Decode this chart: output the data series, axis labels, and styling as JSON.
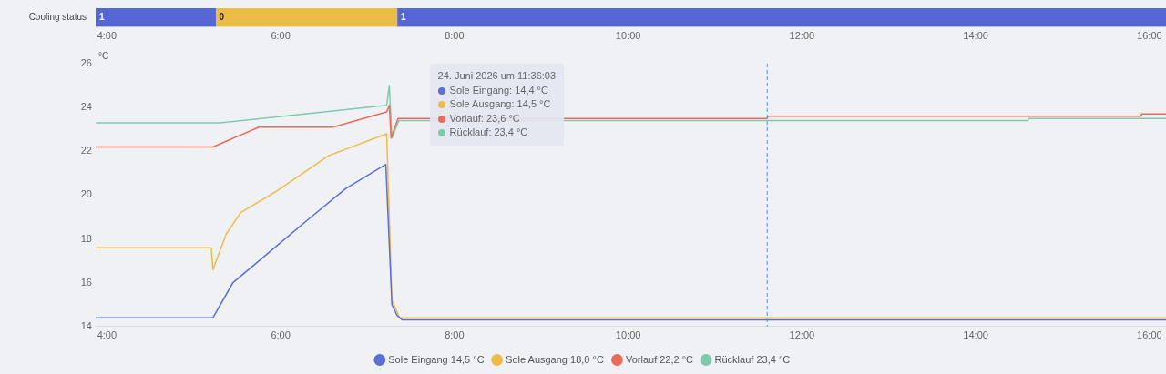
{
  "chart_data": [
    {
      "type": "bar",
      "orientation": "horizontal",
      "categories": [
        "Cooling status"
      ],
      "series": [
        {
          "color": "#5467d4",
          "base": [
            3.87
          ],
          "values": [
            1.38
          ]
        },
        {
          "color": "#ebbd45",
          "base": [
            5.25
          ],
          "values": [
            2.09
          ]
        },
        {
          "color": "#5467d4",
          "base": [
            7.34
          ],
          "values": [
            8.85
          ]
        }
      ],
      "annotations": [
        {
          "text": "1",
          "x": 3.87,
          "y": "Cooling status"
        },
        {
          "text": "0",
          "x": 5.25,
          "y": "Cooling status"
        },
        {
          "text": "1",
          "x": 7.34,
          "y": "Cooling status"
        }
      ],
      "xlim": [
        3.87,
        16.19
      ],
      "xticks": [
        {
          "value": 4,
          "label": "4:00"
        },
        {
          "value": 6,
          "label": "6:00"
        },
        {
          "value": 8,
          "label": "8:00"
        },
        {
          "value": 10,
          "label": "10:00"
        },
        {
          "value": 12,
          "label": "12:00"
        },
        {
          "value": 14,
          "label": "14:00"
        },
        {
          "value": 16,
          "label": "16:00"
        }
      ],
      "grid": false,
      "legend": false
    },
    {
      "type": "line",
      "ylabel": "°C",
      "series": [
        {
          "name": "Sole Eingang 14,5 °C",
          "color": "#5b6fd6",
          "x": [
            3.87,
            5.22,
            5.45,
            5.75,
            6.29,
            6.75,
            7.21,
            7.28,
            7.34,
            7.4,
            16.19
          ],
          "values": [
            14.4,
            14.4,
            16.0,
            17.0,
            18.8,
            20.3,
            21.4,
            15.0,
            14.5,
            14.3,
            14.3
          ]
        },
        {
          "name": "Sole Ausgang 18,0 °C",
          "color": "#ecbc46",
          "x": [
            3.87,
            5.2,
            5.22,
            5.37,
            5.54,
            5.96,
            6.55,
            7.22,
            7.28,
            7.37,
            16.19
          ],
          "values": [
            17.6,
            17.6,
            16.6,
            18.2,
            19.2,
            20.2,
            21.8,
            22.8,
            15.2,
            14.4,
            14.4
          ]
        },
        {
          "name": "Vorlauf 22,2 °C",
          "color": "#eb6b56",
          "x": [
            3.87,
            5.22,
            5.75,
            6.6,
            7.22,
            7.25,
            7.27,
            7.35,
            11.6,
            11.61,
            15.9,
            15.91,
            16.19
          ],
          "values": [
            22.2,
            22.2,
            23.1,
            23.1,
            23.8,
            24.1,
            22.6,
            23.5,
            23.5,
            23.6,
            23.6,
            23.7,
            23.7
          ]
        },
        {
          "name": "Rücklauf 23,4 °C",
          "color": "#7fcaab",
          "x": [
            3.87,
            5.3,
            7.22,
            7.25,
            7.28,
            7.36,
            14.6,
            14.61,
            16.19
          ],
          "values": [
            23.3,
            23.3,
            24.1,
            25.0,
            22.6,
            23.4,
            23.4,
            23.5,
            23.5
          ]
        }
      ],
      "xlim": [
        3.87,
        16.19
      ],
      "xticks": [
        {
          "value": 4,
          "label": "4:00"
        },
        {
          "value": 6,
          "label": "6:00"
        },
        {
          "value": 8,
          "label": "8:00"
        },
        {
          "value": 10,
          "label": "10:00"
        },
        {
          "value": 12,
          "label": "12:00"
        },
        {
          "value": 14,
          "label": "14:00"
        },
        {
          "value": 16,
          "label": "16:00"
        }
      ],
      "ylim": [
        14,
        26
      ],
      "yticks": [
        14,
        16,
        18,
        20,
        22,
        24,
        26
      ],
      "ref_lines": [
        {
          "axis": "x",
          "value": 11.6,
          "label": null,
          "color": "#5b8fe0",
          "line_style": "dashed"
        }
      ],
      "annotations": [
        "24. Juni 2026 um 11:36:03",
        "Sole Eingang: 14,4 °C",
        "Sole Ausgang: 14,5 °C",
        "Vorlauf: 23,6 °C",
        "Rücklauf: 23,4 °C"
      ],
      "grid": false,
      "legend": "bottom",
      "marker": "none",
      "line_style": "solid"
    }
  ]
}
